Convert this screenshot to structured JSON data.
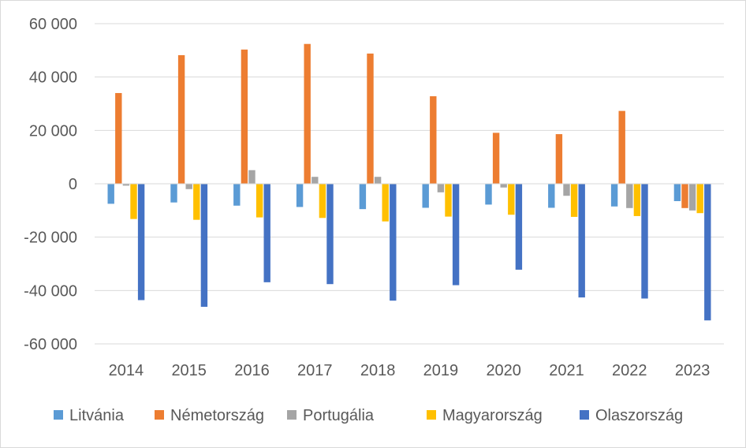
{
  "chart_data": {
    "type": "bar",
    "title": "",
    "xlabel": "",
    "ylabel": "",
    "categories": [
      "2014",
      "2015",
      "2016",
      "2017",
      "2018",
      "2019",
      "2020",
      "2021",
      "2022",
      "2023"
    ],
    "ylim": [
      -60000,
      60000
    ],
    "yticks": [
      60000,
      40000,
      20000,
      0,
      -20000,
      -40000,
      -60000
    ],
    "ytick_labels": [
      "60 000",
      "40 000",
      "20 000",
      "0",
      "-20 000",
      "-40 000",
      "-60 000"
    ],
    "grid": true,
    "legend": "bottom",
    "series": [
      {
        "name": "Litvánia",
        "color": "#5b9bd5",
        "values": [
          -7500,
          -7000,
          -8200,
          -8700,
          -9500,
          -9000,
          -7800,
          -9000,
          -8500,
          -6500
        ]
      },
      {
        "name": "Németország",
        "color": "#ed7d31",
        "values": [
          34000,
          48200,
          50300,
          52400,
          48800,
          32800,
          19100,
          18600,
          27300,
          -9100
        ]
      },
      {
        "name": "Portugália",
        "color": "#a5a5a5",
        "values": [
          -700,
          -2000,
          5100,
          2600,
          2600,
          -3200,
          -1400,
          -4500,
          -9100,
          -10000
        ]
      },
      {
        "name": "Magyarország",
        "color": "#ffc000",
        "values": [
          -13200,
          -13500,
          -12600,
          -12800,
          -14100,
          -12300,
          -11600,
          -12400,
          -12100,
          -11000
        ]
      },
      {
        "name": "Olaszország",
        "color": "#4472c4",
        "values": [
          -43600,
          -46100,
          -36900,
          -37600,
          -43800,
          -38000,
          -32200,
          -42600,
          -43000,
          -51200
        ]
      }
    ]
  }
}
